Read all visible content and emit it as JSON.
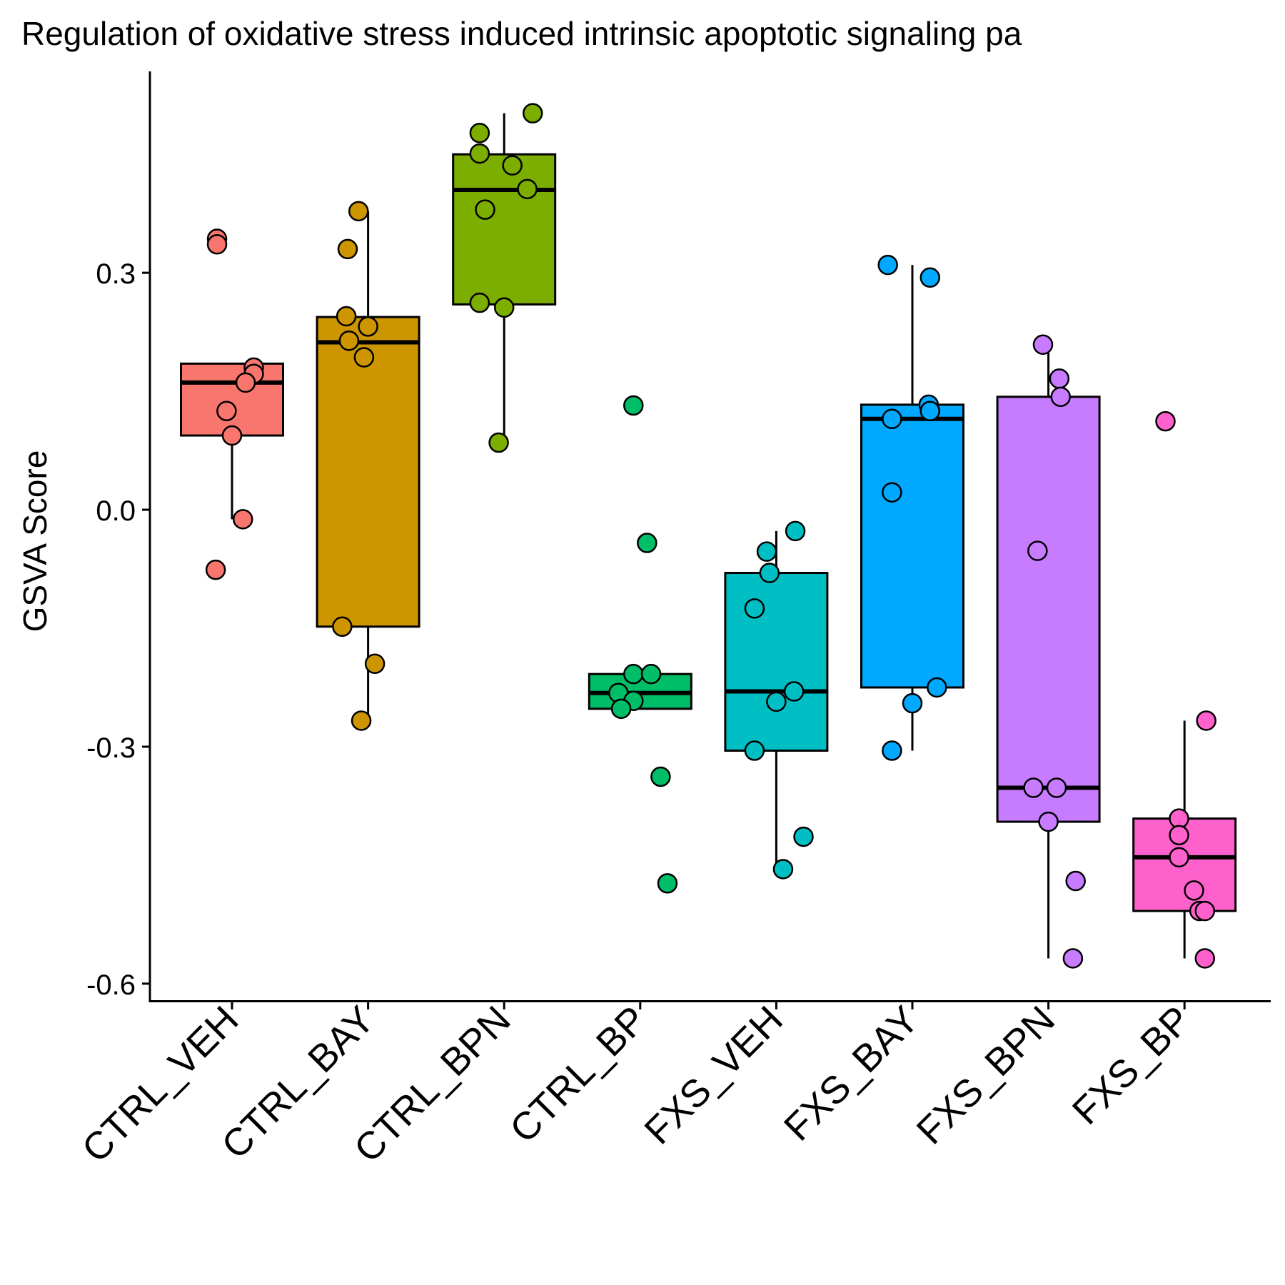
{
  "chart_data": {
    "type": "boxplot",
    "title": "Regulation of oxidative stress induced intrinsic apoptotic signaling pa",
    "xlabel": "",
    "ylabel": "GSVA Score",
    "ylim": [
      -0.62,
      0.555
    ],
    "yticks": [
      {
        "value": 0.3,
        "label": "0.3"
      },
      {
        "value": 0.0,
        "label": "0.0"
      },
      {
        "value": -0.3,
        "label": "-0.3"
      },
      {
        "value": -0.6,
        "label": "-0.6"
      }
    ],
    "grid": false,
    "legend": "none",
    "categories": [
      "CTRL_VEH",
      "CTRL_BAY",
      "CTRL_BPN",
      "CTRL_BP",
      "FXS_VEH",
      "FXS_BAY",
      "FXS_BPN",
      "FXS_BP"
    ],
    "colors": [
      "#F8766D",
      "#CD9600",
      "#7CAE00",
      "#00BE67",
      "#00BFC4",
      "#00A9FF",
      "#C77CFF",
      "#FF61CC"
    ],
    "boxes": [
      {
        "q1": 0.094,
        "median": 0.161,
        "q3": 0.185,
        "whisker_low": -0.012,
        "whisker_high": 0.185
      },
      {
        "q1": -0.148,
        "median": 0.212,
        "q3": 0.244,
        "whisker_low": -0.267,
        "whisker_high": 0.378
      },
      {
        "q1": 0.26,
        "median": 0.405,
        "q3": 0.45,
        "whisker_low": 0.085,
        "whisker_high": 0.502
      },
      {
        "q1": -0.252,
        "median": -0.232,
        "q3": -0.208,
        "whisker_low": -0.252,
        "whisker_high": -0.208
      },
      {
        "q1": -0.305,
        "median": -0.23,
        "q3": -0.08,
        "whisker_low": -0.455,
        "whisker_high": -0.027
      },
      {
        "q1": -0.225,
        "median": 0.115,
        "q3": 0.133,
        "whisker_low": -0.305,
        "whisker_high": 0.31
      },
      {
        "q1": -0.395,
        "median": -0.352,
        "q3": 0.143,
        "whisker_low": -0.568,
        "whisker_high": 0.2
      },
      {
        "q1": -0.508,
        "median": -0.44,
        "q3": -0.391,
        "whisker_low": -0.568,
        "whisker_high": -0.267
      }
    ],
    "points": [
      [
        {
          "x": 0.89,
          "y": 0.343
        },
        {
          "x": 0.89,
          "y": 0.336
        },
        {
          "x": 1.16,
          "y": 0.18
        },
        {
          "x": 1.16,
          "y": 0.172
        },
        {
          "x": 1.1,
          "y": 0.161
        },
        {
          "x": 0.96,
          "y": 0.125
        },
        {
          "x": 1.0,
          "y": 0.094
        },
        {
          "x": 1.08,
          "y": -0.012
        },
        {
          "x": 0.88,
          "y": -0.076
        }
      ],
      [
        {
          "x": 1.93,
          "y": 0.378
        },
        {
          "x": 1.85,
          "y": 0.33
        },
        {
          "x": 1.84,
          "y": 0.245
        },
        {
          "x": 2.0,
          "y": 0.232
        },
        {
          "x": 1.86,
          "y": 0.214
        },
        {
          "x": 1.97,
          "y": 0.193
        },
        {
          "x": 1.81,
          "y": -0.148
        },
        {
          "x": 2.05,
          "y": -0.195
        },
        {
          "x": 1.95,
          "y": -0.267
        }
      ],
      [
        {
          "x": 3.21,
          "y": 0.502
        },
        {
          "x": 2.82,
          "y": 0.477
        },
        {
          "x": 2.82,
          "y": 0.451
        },
        {
          "x": 3.06,
          "y": 0.436
        },
        {
          "x": 3.17,
          "y": 0.406
        },
        {
          "x": 2.86,
          "y": 0.38
        },
        {
          "x": 2.82,
          "y": 0.262
        },
        {
          "x": 3.0,
          "y": 0.256
        },
        {
          "x": 2.96,
          "y": 0.085
        }
      ],
      [
        {
          "x": 3.95,
          "y": 0.132
        },
        {
          "x": 4.05,
          "y": -0.042
        },
        {
          "x": 3.95,
          "y": -0.208
        },
        {
          "x": 4.08,
          "y": -0.208
        },
        {
          "x": 3.84,
          "y": -0.232
        },
        {
          "x": 3.95,
          "y": -0.242
        },
        {
          "x": 3.86,
          "y": -0.252
        },
        {
          "x": 4.15,
          "y": -0.338
        },
        {
          "x": 4.2,
          "y": -0.473
        }
      ],
      [
        {
          "x": 5.14,
          "y": -0.027
        },
        {
          "x": 4.93,
          "y": -0.053
        },
        {
          "x": 4.95,
          "y": -0.08
        },
        {
          "x": 4.84,
          "y": -0.125
        },
        {
          "x": 5.13,
          "y": -0.23
        },
        {
          "x": 5.0,
          "y": -0.243
        },
        {
          "x": 4.84,
          "y": -0.305
        },
        {
          "x": 5.2,
          "y": -0.414
        },
        {
          "x": 5.05,
          "y": -0.455
        }
      ],
      [
        {
          "x": 5.82,
          "y": 0.31
        },
        {
          "x": 6.13,
          "y": 0.294
        },
        {
          "x": 6.12,
          "y": 0.133
        },
        {
          "x": 6.13,
          "y": 0.125
        },
        {
          "x": 5.85,
          "y": 0.115
        },
        {
          "x": 5.85,
          "y": 0.022
        },
        {
          "x": 6.18,
          "y": -0.225
        },
        {
          "x": 6.0,
          "y": -0.245
        },
        {
          "x": 5.85,
          "y": -0.305
        }
      ],
      [
        {
          "x": 6.96,
          "y": 0.209
        },
        {
          "x": 7.08,
          "y": 0.166
        },
        {
          "x": 7.09,
          "y": 0.143
        },
        {
          "x": 6.92,
          "y": -0.052
        },
        {
          "x": 6.89,
          "y": -0.352
        },
        {
          "x": 7.06,
          "y": -0.352
        },
        {
          "x": 7.0,
          "y": -0.395
        },
        {
          "x": 7.2,
          "y": -0.47
        },
        {
          "x": 7.18,
          "y": -0.568
        }
      ],
      [
        {
          "x": 7.86,
          "y": 0.112
        },
        {
          "x": 8.16,
          "y": -0.267
        },
        {
          "x": 7.96,
          "y": -0.391
        },
        {
          "x": 7.96,
          "y": -0.412
        },
        {
          "x": 7.96,
          "y": -0.44
        },
        {
          "x": 8.07,
          "y": -0.482
        },
        {
          "x": 8.11,
          "y": -0.508
        },
        {
          "x": 8.15,
          "y": -0.508
        },
        {
          "x": 8.15,
          "y": -0.568
        }
      ]
    ]
  }
}
